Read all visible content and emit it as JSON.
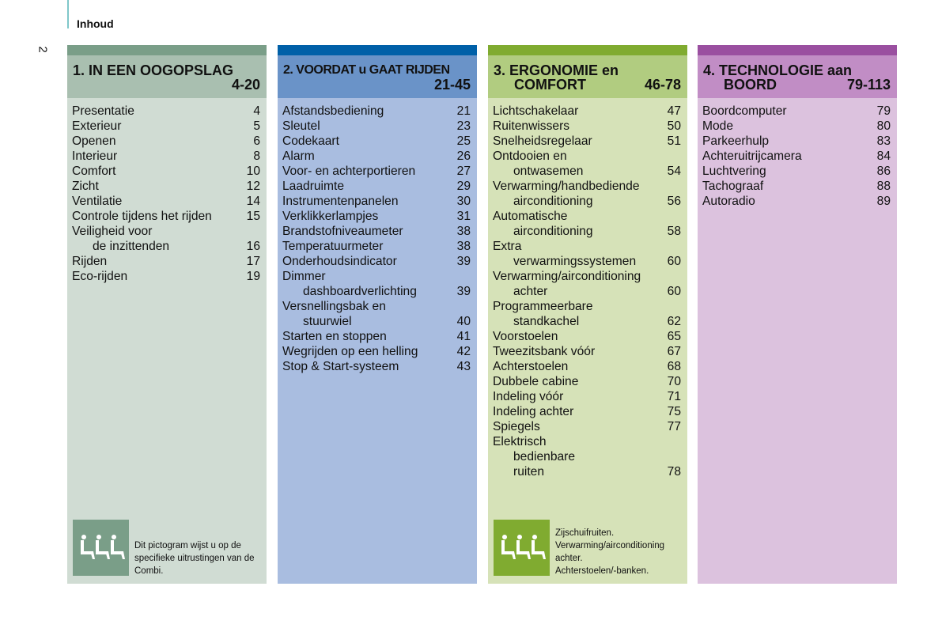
{
  "header": {
    "title": "Inhoud",
    "page_number": "2"
  },
  "columns": [
    {
      "title": "1. IN EEN OOGOPSLAG",
      "pages": "4-20",
      "colors": {
        "bar": "#7a9e88",
        "head": "#a9bfb0",
        "body": "#d0dcd3"
      },
      "items": [
        {
          "lines": [
            "Presentatie"
          ],
          "page": "4"
        },
        {
          "lines": [
            "Exterieur"
          ],
          "page": "5"
        },
        {
          "lines": [
            "Openen"
          ],
          "page": "6"
        },
        {
          "lines": [
            "Interieur"
          ],
          "page": "8"
        },
        {
          "lines": [
            "Comfort"
          ],
          "page": "10"
        },
        {
          "lines": [
            "Zicht"
          ],
          "page": "12"
        },
        {
          "lines": [
            "Ventilatie"
          ],
          "page": "14"
        },
        {
          "lines": [
            "Controle tijdens het rijden"
          ],
          "page": "15"
        },
        {
          "lines": [
            "Veiligheid voor",
            "de inzittenden"
          ],
          "page": "16"
        },
        {
          "lines": [
            "Rijden"
          ],
          "page": "17"
        },
        {
          "lines": [
            "Eco-rijden"
          ],
          "page": "19"
        }
      ],
      "note": {
        "icon": "seats-pictogram",
        "text": "Dit pictogram wijst u op de specifieke uitrustingen van de Combi."
      }
    },
    {
      "title": "2. VOORDAT u GAAT RIJDEN",
      "pages": "21-45",
      "colors": {
        "bar": "#0060a8",
        "head": "#6a93c8",
        "body": "#a9bde0"
      },
      "items": [
        {
          "lines": [
            "Afstandsbediening"
          ],
          "page": "21"
        },
        {
          "lines": [
            "Sleutel"
          ],
          "page": "23"
        },
        {
          "lines": [
            "Codekaart"
          ],
          "page": "25"
        },
        {
          "lines": [
            "Alarm"
          ],
          "page": "26"
        },
        {
          "lines": [
            "Voor- en achterportieren"
          ],
          "page": "27"
        },
        {
          "lines": [
            "Laadruimte"
          ],
          "page": "29"
        },
        {
          "lines": [
            "Instrumentenpanelen"
          ],
          "page": "30"
        },
        {
          "lines": [
            "Verklikkerlampjes"
          ],
          "page": "31"
        },
        {
          "lines": [
            "Brandstofniveaumeter"
          ],
          "page": "38"
        },
        {
          "lines": [
            "Temperatuurmeter"
          ],
          "page": "38"
        },
        {
          "lines": [
            "Onderhoudsindicator"
          ],
          "page": "39"
        },
        {
          "lines": [
            "Dimmer",
            "dashboardverlichting"
          ],
          "page": "39"
        },
        {
          "lines": [
            "Versnellingsbak en",
            "stuurwiel"
          ],
          "page": "40"
        },
        {
          "lines": [
            "Starten en stoppen"
          ],
          "page": "41"
        },
        {
          "lines": [
            "Wegrijden op een helling"
          ],
          "page": "42"
        },
        {
          "lines": [
            "Stop & Start-systeem"
          ],
          "page": "43"
        }
      ]
    },
    {
      "title": "3. ERGONOMIE en",
      "title2": "COMFORT",
      "pages": "46-78",
      "colors": {
        "bar": "#80ab30",
        "head": "#b1cc80",
        "body": "#d6e2b8"
      },
      "items": [
        {
          "lines": [
            "Lichtschakelaar"
          ],
          "page": "47"
        },
        {
          "lines": [
            "Ruitenwissers"
          ],
          "page": "50"
        },
        {
          "lines": [
            "Snelheidsregelaar"
          ],
          "page": "51"
        },
        {
          "lines": [
            "Ontdooien en",
            "ontwasemen"
          ],
          "page": "54"
        },
        {
          "lines": [
            "Verwarming/handbediende",
            "airconditioning"
          ],
          "page": "56"
        },
        {
          "lines": [
            "Automatische",
            "airconditioning"
          ],
          "page": "58"
        },
        {
          "lines": [
            "Extra",
            "verwarmingssystemen"
          ],
          "page": "60"
        },
        {
          "lines": [
            "Verwarming/airconditioning",
            "achter"
          ],
          "page": "60"
        },
        {
          "lines": [
            "Programmeerbare",
            "standkachel"
          ],
          "page": "62"
        },
        {
          "lines": [
            "Voorstoelen"
          ],
          "page": "65"
        },
        {
          "lines": [
            "Tweezitsbank vóór"
          ],
          "page": "67"
        },
        {
          "lines": [
            "Achterstoelen"
          ],
          "page": "68"
        },
        {
          "lines": [
            "Dubbele cabine"
          ],
          "page": "70"
        },
        {
          "lines": [
            "Indeling vóór"
          ],
          "page": "71"
        },
        {
          "lines": [
            "Indeling achter"
          ],
          "page": "75"
        },
        {
          "lines": [
            "Spiegels"
          ],
          "page": "77"
        },
        {
          "lines": [
            "Elektrisch",
            "bedienbare",
            "ruiten"
          ],
          "page": "78"
        }
      ],
      "note": {
        "icon": "seats-pictogram",
        "text_lines": [
          "Zijschuifruiten.",
          "Verwarming/airconditioning",
          "achter.",
          "Achterstoelen/-banken."
        ]
      }
    },
    {
      "title": "4. TECHNOLOGIE aan",
      "title2": "BOORD",
      "pages": "79-113",
      "colors": {
        "bar": "#9a4fa0",
        "head": "#c18dc5",
        "body": "#dcc2de"
      },
      "items": [
        {
          "lines": [
            "Boordcomputer"
          ],
          "page": "79"
        },
        {
          "lines": [
            "Mode"
          ],
          "page": "80"
        },
        {
          "lines": [
            "Parkeerhulp"
          ],
          "page": "83"
        },
        {
          "lines": [
            "Achteruitrijcamera"
          ],
          "page": "84"
        },
        {
          "lines": [
            "Luchtvering"
          ],
          "page": "86"
        },
        {
          "lines": [
            "Tachograaf"
          ],
          "page": "88"
        },
        {
          "lines": [
            "Autoradio"
          ],
          "page": "89"
        }
      ]
    }
  ]
}
